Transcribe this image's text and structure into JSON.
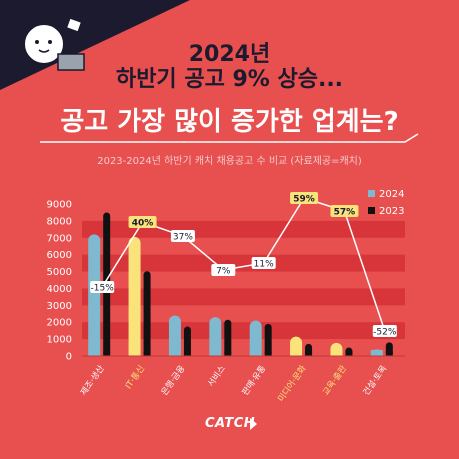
{
  "title_line1": "2024년",
  "title_line2": "하반기 공고 9% 상승...",
  "title_line3": "공고 가장 많이 증가한 업계는?",
  "subtitle": "2023-2024년 하반기 캐치 채용공고 수 비교 (자료제공=캐치)",
  "brand": "CATCH",
  "colors": {
    "background": "#e84f4f",
    "bar_2024": "#7fb9cf",
    "bar_2024_highlight": "#f9e37a",
    "bar_2023": "#111111",
    "band": "#d8353a",
    "highlight_text": "#f9e37a"
  },
  "chart_data": {
    "type": "bar",
    "categories": [
      "제조·생산",
      "IT·통신",
      "은행·금융",
      "서비스",
      "판매·유통",
      "미디어·문화",
      "교육·출판",
      "건설·토목"
    ],
    "highlight_categories": [
      "IT·통신",
      "미디어·문화",
      "교육·출판"
    ],
    "series": [
      {
        "name": "2024",
        "values": [
          7200,
          7050,
          2400,
          2300,
          2100,
          1150,
          780,
          390
        ]
      },
      {
        "name": "2023",
        "values": [
          8500,
          5020,
          1750,
          2150,
          1900,
          720,
          500,
          810
        ]
      }
    ],
    "change_labels": [
      "-15%",
      "40%",
      "37%",
      "7%",
      "11%",
      "59%",
      "57%",
      "-52%"
    ],
    "y_ticks": [
      "0",
      "1000",
      "2000",
      "3000",
      "4000",
      "5000",
      "6000",
      "7000",
      "8000",
      "9000"
    ],
    "ylim": [
      0,
      9000
    ],
    "legend_placement": "top-right"
  }
}
